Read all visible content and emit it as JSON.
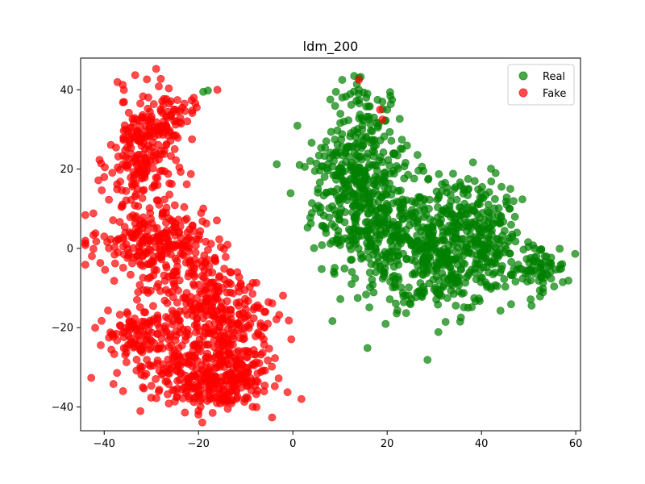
{
  "chart_data": {
    "type": "scatter",
    "title": "ldm_200",
    "xlabel": "",
    "ylabel": "",
    "xlim": [
      -45,
      61
    ],
    "ylim": [
      -46,
      48
    ],
    "xticks": [
      -40,
      -20,
      0,
      20,
      40,
      60
    ],
    "yticks": [
      -40,
      -20,
      0,
      20,
      40
    ],
    "xtick_labels": [
      "−40",
      "−20",
      "0",
      "20",
      "40",
      "60"
    ],
    "ytick_labels": [
      "−40",
      "−20",
      "0",
      "20",
      "40"
    ],
    "grid": false,
    "legend_position": "top-right",
    "series": [
      {
        "name": "Real",
        "color": "#008000",
        "opacity": 0.7,
        "clusters": [
          {
            "cx": 14,
            "cy": 12,
            "sx": 5,
            "sy": 8,
            "n": 260
          },
          {
            "cx": 22,
            "cy": 2,
            "sx": 6,
            "sy": 8,
            "n": 220
          },
          {
            "cx": 32,
            "cy": -4,
            "sx": 6,
            "sy": 6,
            "n": 240
          },
          {
            "cx": 35,
            "cy": 10,
            "sx": 5,
            "sy": 5,
            "n": 120
          },
          {
            "cx": 42,
            "cy": 0,
            "sx": 4,
            "sy": 6,
            "n": 120
          },
          {
            "cx": 52,
            "cy": -5,
            "sx": 3,
            "sy": 3,
            "n": 70
          },
          {
            "cx": 16,
            "cy": 30,
            "sx": 4,
            "sy": 6,
            "n": 90
          },
          {
            "cx": 11,
            "cy": 22,
            "sx": 4,
            "sy": 4,
            "n": 60
          }
        ],
        "extra_points": [
          [
            13,
            43.5
          ],
          [
            14,
            43
          ],
          [
            19,
            37
          ],
          [
            20,
            35
          ],
          [
            -19,
            39.5
          ],
          [
            -18,
            39.8
          ],
          [
            -26,
            33.5
          ],
          [
            14,
            40
          ]
        ]
      },
      {
        "name": "Fake",
        "color": "#ff0000",
        "opacity": 0.7,
        "clusters": [
          {
            "cx": -32,
            "cy": 22,
            "sx": 3.5,
            "sy": 8,
            "n": 200
          },
          {
            "cx": -27,
            "cy": 33,
            "sx": 3,
            "sy": 3,
            "n": 70
          },
          {
            "cx": -31,
            "cy": 2,
            "sx": 6,
            "sy": 4,
            "n": 170
          },
          {
            "cx": -22,
            "cy": -8,
            "sx": 6,
            "sy": 8,
            "n": 200
          },
          {
            "cx": -14,
            "cy": -18,
            "sx": 5,
            "sy": 6,
            "n": 150
          },
          {
            "cx": -26,
            "cy": -26,
            "sx": 6,
            "sy": 5,
            "n": 160
          },
          {
            "cx": -18,
            "cy": -35,
            "sx": 6,
            "sy": 3,
            "n": 170
          },
          {
            "cx": -34,
            "cy": -22,
            "sx": 2.5,
            "sy": 3,
            "n": 50
          },
          {
            "cx": -11,
            "cy": -28,
            "sx": 3,
            "sy": 4,
            "n": 80
          }
        ],
        "extra_points": [
          [
            -16,
            40
          ],
          [
            -21,
            38
          ],
          [
            -23,
            36.5
          ],
          [
            -25,
            35
          ],
          [
            14,
            42.5
          ],
          [
            18.5,
            35
          ],
          [
            19,
            32.5
          ],
          [
            -40,
            18
          ],
          [
            -40,
            3
          ],
          [
            -36,
            -36
          ],
          [
            -20,
            -41
          ],
          [
            -6,
            -20
          ]
        ]
      }
    ]
  }
}
